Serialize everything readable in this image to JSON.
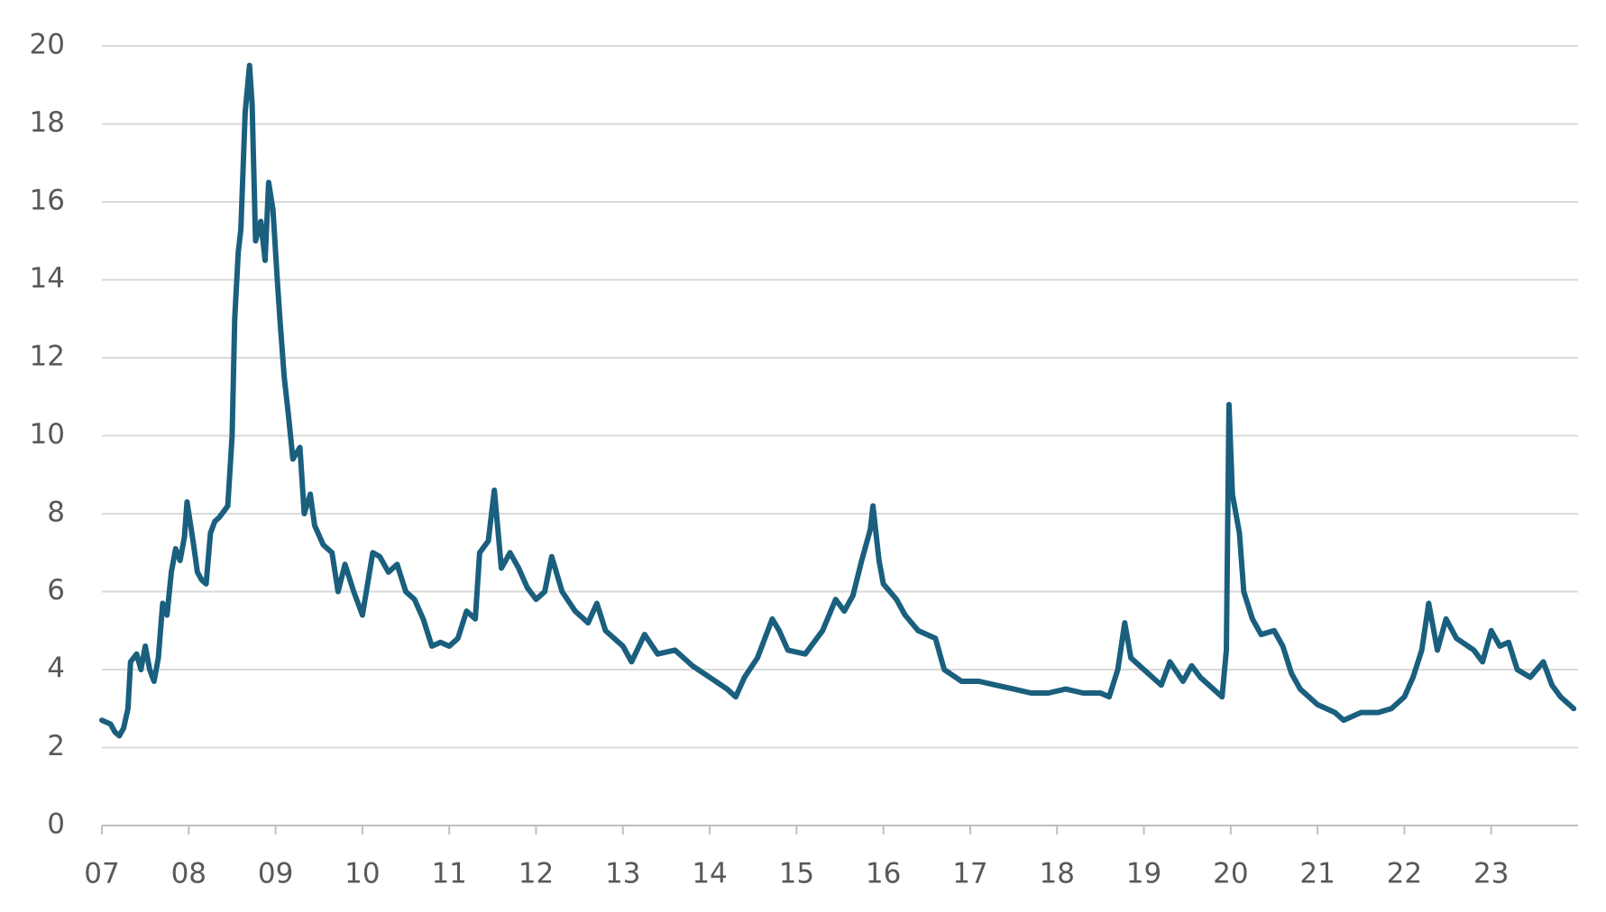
{
  "chart_data": {
    "type": "line",
    "x": [
      2007.0,
      2007.1,
      2007.15,
      2007.2,
      2007.25,
      2007.3,
      2007.33,
      2007.4,
      2007.45,
      2007.5,
      2007.55,
      2007.6,
      2007.65,
      2007.7,
      2007.75,
      2007.8,
      2007.85,
      2007.9,
      2007.95,
      2007.98,
      2008.05,
      2008.1,
      2008.15,
      2008.2,
      2008.25,
      2008.3,
      2008.35,
      2008.45,
      2008.5,
      2008.53,
      2008.57,
      2008.6,
      2008.65,
      2008.7,
      2008.73,
      2008.77,
      2008.83,
      2008.88,
      2008.92,
      2008.97,
      2009.02,
      2009.05,
      2009.1,
      2009.15,
      2009.2,
      2009.28,
      2009.33,
      2009.4,
      2009.45,
      2009.55,
      2009.65,
      2009.72,
      2009.8,
      2009.9,
      2010.0,
      2010.12,
      2010.2,
      2010.3,
      2010.4,
      2010.5,
      2010.6,
      2010.7,
      2010.8,
      2010.9,
      2011.0,
      2011.1,
      2011.2,
      2011.3,
      2011.35,
      2011.45,
      2011.52,
      2011.6,
      2011.7,
      2011.8,
      2011.9,
      2012.0,
      2012.1,
      2012.18,
      2012.3,
      2012.45,
      2012.6,
      2012.7,
      2012.8,
      2012.9,
      2013.0,
      2013.1,
      2013.25,
      2013.4,
      2013.6,
      2013.8,
      2014.0,
      2014.2,
      2014.3,
      2014.4,
      2014.55,
      2014.72,
      2014.8,
      2014.9,
      2015.1,
      2015.3,
      2015.45,
      2015.55,
      2015.65,
      2015.75,
      2015.85,
      2015.88,
      2015.95,
      2016.0,
      2016.15,
      2016.25,
      2016.4,
      2016.6,
      2016.7,
      2016.9,
      2017.1,
      2017.3,
      2017.5,
      2017.7,
      2017.9,
      2018.1,
      2018.3,
      2018.5,
      2018.6,
      2018.7,
      2018.78,
      2018.85,
      2019.0,
      2019.2,
      2019.3,
      2019.45,
      2019.55,
      2019.65,
      2019.8,
      2019.9,
      2019.95,
      2019.98,
      2020.02,
      2020.1,
      2020.15,
      2020.25,
      2020.35,
      2020.5,
      2020.6,
      2020.7,
      2020.8,
      2021.0,
      2021.2,
      2021.3,
      2021.5,
      2021.7,
      2021.85,
      2022.0,
      2022.1,
      2022.2,
      2022.28,
      2022.38,
      2022.48,
      2022.6,
      2022.8,
      2022.9,
      2023.0,
      2023.1,
      2023.2,
      2023.3,
      2023.45,
      2023.6,
      2023.7,
      2023.8,
      2023.95
    ],
    "series": [
      {
        "color": "#1a5f7e",
        "values": [
          2.7,
          2.6,
          2.4,
          2.3,
          2.5,
          3.0,
          4.2,
          4.4,
          4.0,
          4.6,
          4.0,
          3.7,
          4.3,
          5.7,
          5.4,
          6.5,
          7.1,
          6.8,
          7.4,
          8.3,
          7.3,
          6.5,
          6.3,
          6.2,
          7.5,
          7.8,
          7.9,
          8.2,
          10.0,
          13.0,
          14.7,
          15.3,
          18.3,
          19.5,
          18.5,
          15.0,
          15.5,
          14.5,
          16.5,
          15.8,
          14.0,
          13.0,
          11.5,
          10.5,
          9.4,
          9.7,
          8.0,
          8.5,
          7.7,
          7.2,
          7.0,
          6.0,
          6.7,
          6.0,
          5.4,
          7.0,
          6.9,
          6.5,
          6.7,
          6.0,
          5.8,
          5.3,
          4.6,
          4.7,
          4.6,
          4.8,
          5.5,
          5.3,
          7.0,
          7.3,
          8.6,
          6.6,
          7.0,
          6.6,
          6.1,
          5.8,
          6.0,
          6.9,
          6.0,
          5.5,
          5.2,
          5.7,
          5.0,
          4.8,
          4.6,
          4.2,
          4.9,
          4.4,
          4.5,
          4.1,
          3.8,
          3.5,
          3.3,
          3.8,
          4.3,
          5.3,
          5.0,
          4.5,
          4.4,
          5.0,
          5.8,
          5.5,
          5.9,
          6.8,
          7.6,
          8.2,
          6.8,
          6.2,
          5.8,
          5.4,
          5.0,
          4.8,
          4.0,
          3.7,
          3.7,
          3.6,
          3.5,
          3.4,
          3.4,
          3.5,
          3.4,
          3.4,
          3.3,
          4.0,
          5.2,
          4.3,
          4.0,
          3.6,
          4.2,
          3.7,
          4.1,
          3.8,
          3.5,
          3.3,
          4.5,
          10.8,
          8.5,
          7.5,
          6.0,
          5.3,
          4.9,
          5.0,
          4.6,
          3.9,
          3.5,
          3.1,
          2.9,
          2.7,
          2.9,
          2.9,
          3.0,
          3.3,
          3.8,
          4.5,
          5.7,
          4.5,
          5.3,
          4.8,
          4.5,
          4.2,
          5.0,
          4.6,
          4.7,
          4.0,
          3.8,
          4.2,
          3.6,
          3.3,
          3.0
        ]
      }
    ],
    "xlim": [
      2007,
      2024
    ],
    "xticks": [
      {
        "value": 2007,
        "label": "07"
      },
      {
        "value": 2008,
        "label": "08"
      },
      {
        "value": 2009,
        "label": "09"
      },
      {
        "value": 2010,
        "label": "10"
      },
      {
        "value": 2011,
        "label": "11"
      },
      {
        "value": 2012,
        "label": "12"
      },
      {
        "value": 2013,
        "label": "13"
      },
      {
        "value": 2014,
        "label": "14"
      },
      {
        "value": 2015,
        "label": "15"
      },
      {
        "value": 2016,
        "label": "16"
      },
      {
        "value": 2017,
        "label": "17"
      },
      {
        "value": 2018,
        "label": "18"
      },
      {
        "value": 2019,
        "label": "19"
      },
      {
        "value": 2020,
        "label": "20"
      },
      {
        "value": 2021,
        "label": "21"
      },
      {
        "value": 2022,
        "label": "22"
      },
      {
        "value": 2023,
        "label": "23"
      }
    ],
    "ylim": [
      0,
      20
    ],
    "yticks": [
      0,
      2,
      4,
      6,
      8,
      10,
      12,
      14,
      16,
      18,
      20
    ],
    "grid": true
  }
}
